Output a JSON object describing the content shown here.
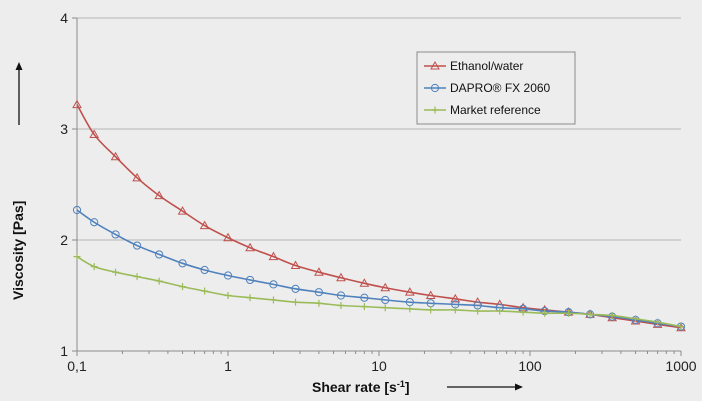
{
  "chart_data": {
    "type": "line",
    "xscale": "log",
    "xlim": [
      0.1,
      1000
    ],
    "ylim": [
      1,
      4
    ],
    "xticks": [
      "0,1",
      "1",
      "10",
      "100",
      "1000"
    ],
    "yticks": [
      "1",
      "2",
      "3",
      "4"
    ],
    "xlabel": "Shear rate [s",
    "xlabel_sup": "-1",
    "xlabel_close": "]",
    "ylabel": "Viscosity [Pas]",
    "grid": "horizontal",
    "legend_position": "top-right",
    "series": [
      {
        "name": "Ethanol/water",
        "color": "#c0504d",
        "marker": "triangle",
        "points": [
          [
            0.1,
            3.22
          ],
          [
            0.13,
            2.95
          ],
          [
            0.18,
            2.75
          ],
          [
            0.25,
            2.56
          ],
          [
            0.35,
            2.4
          ],
          [
            0.5,
            2.26
          ],
          [
            0.7,
            2.13
          ],
          [
            1,
            2.02
          ],
          [
            1.4,
            1.93
          ],
          [
            2,
            1.85
          ],
          [
            2.8,
            1.77
          ],
          [
            4,
            1.71
          ],
          [
            5.6,
            1.66
          ],
          [
            8,
            1.61
          ],
          [
            11,
            1.57
          ],
          [
            16,
            1.53
          ],
          [
            22,
            1.5
          ],
          [
            32,
            1.47
          ],
          [
            45,
            1.44
          ],
          [
            63,
            1.42
          ],
          [
            90,
            1.39
          ],
          [
            125,
            1.37
          ],
          [
            180,
            1.35
          ],
          [
            250,
            1.33
          ],
          [
            350,
            1.3
          ],
          [
            500,
            1.27
          ],
          [
            700,
            1.24
          ],
          [
            1000,
            1.21
          ]
        ]
      },
      {
        "name": "DAPRO® FX 2060",
        "color": "#4f81bd",
        "marker": "circle",
        "points": [
          [
            0.1,
            2.27
          ],
          [
            0.13,
            2.16
          ],
          [
            0.18,
            2.05
          ],
          [
            0.25,
            1.95
          ],
          [
            0.35,
            1.87
          ],
          [
            0.5,
            1.79
          ],
          [
            0.7,
            1.73
          ],
          [
            1,
            1.68
          ],
          [
            1.4,
            1.64
          ],
          [
            2,
            1.6
          ],
          [
            2.8,
            1.56
          ],
          [
            4,
            1.53
          ],
          [
            5.6,
            1.5
          ],
          [
            8,
            1.48
          ],
          [
            11,
            1.46
          ],
          [
            16,
            1.44
          ],
          [
            22,
            1.43
          ],
          [
            32,
            1.42
          ],
          [
            45,
            1.41
          ],
          [
            63,
            1.39
          ],
          [
            90,
            1.38
          ],
          [
            125,
            1.36
          ],
          [
            180,
            1.35
          ],
          [
            250,
            1.33
          ],
          [
            350,
            1.31
          ],
          [
            500,
            1.28
          ],
          [
            700,
            1.25
          ],
          [
            1000,
            1.22
          ]
        ]
      },
      {
        "name": "Market reference",
        "color": "#9bbb59",
        "marker": "plus",
        "points": [
          [
            0.1,
            1.85
          ],
          [
            0.13,
            1.76
          ],
          [
            0.18,
            1.71
          ],
          [
            0.25,
            1.67
          ],
          [
            0.35,
            1.63
          ],
          [
            0.5,
            1.58
          ],
          [
            0.7,
            1.54
          ],
          [
            1,
            1.5
          ],
          [
            1.4,
            1.48
          ],
          [
            2,
            1.46
          ],
          [
            2.8,
            1.44
          ],
          [
            4,
            1.43
          ],
          [
            5.6,
            1.41
          ],
          [
            8,
            1.4
          ],
          [
            11,
            1.39
          ],
          [
            16,
            1.38
          ],
          [
            22,
            1.37
          ],
          [
            32,
            1.37
          ],
          [
            45,
            1.36
          ],
          [
            63,
            1.36
          ],
          [
            90,
            1.35
          ],
          [
            125,
            1.34
          ],
          [
            180,
            1.34
          ],
          [
            250,
            1.33
          ],
          [
            350,
            1.32
          ],
          [
            500,
            1.29
          ],
          [
            700,
            1.26
          ],
          [
            1000,
            1.22
          ]
        ]
      }
    ]
  }
}
